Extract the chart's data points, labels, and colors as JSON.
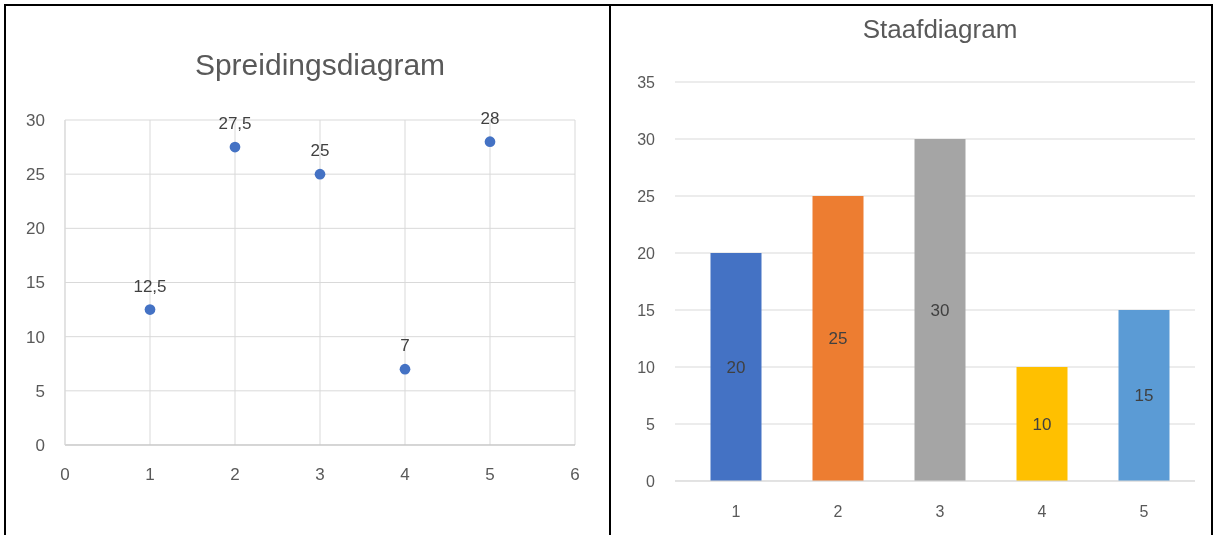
{
  "chart_data": [
    {
      "type": "scatter",
      "title": "Spreidingsdiagram",
      "x": [
        1,
        2,
        3,
        4,
        5
      ],
      "values": [
        12.5,
        27.5,
        25,
        7,
        28
      ],
      "value_labels": [
        "12,5",
        "27,5",
        "25",
        "7",
        "28"
      ],
      "color": "#4472c4",
      "xlim": [
        0,
        6
      ],
      "xticks": [
        0,
        1,
        2,
        3,
        4,
        5,
        6
      ],
      "ylim": [
        0,
        30
      ],
      "yticks": [
        0,
        5,
        10,
        15,
        20,
        25,
        30
      ],
      "grid": true,
      "marker": "circle"
    },
    {
      "type": "bar",
      "title": "Staafdiagram",
      "categories": [
        "1",
        "2",
        "3",
        "4",
        "5"
      ],
      "values": [
        20,
        25,
        30,
        10,
        15
      ],
      "colors": [
        "#4472c4",
        "#ed7d31",
        "#a5a5a5",
        "#ffc000",
        "#5b9bd5"
      ],
      "ylim": [
        0,
        35
      ],
      "yticks": [
        0,
        5,
        10,
        15,
        20,
        25,
        30,
        35
      ],
      "grid": "y",
      "data_labels": true
    }
  ]
}
